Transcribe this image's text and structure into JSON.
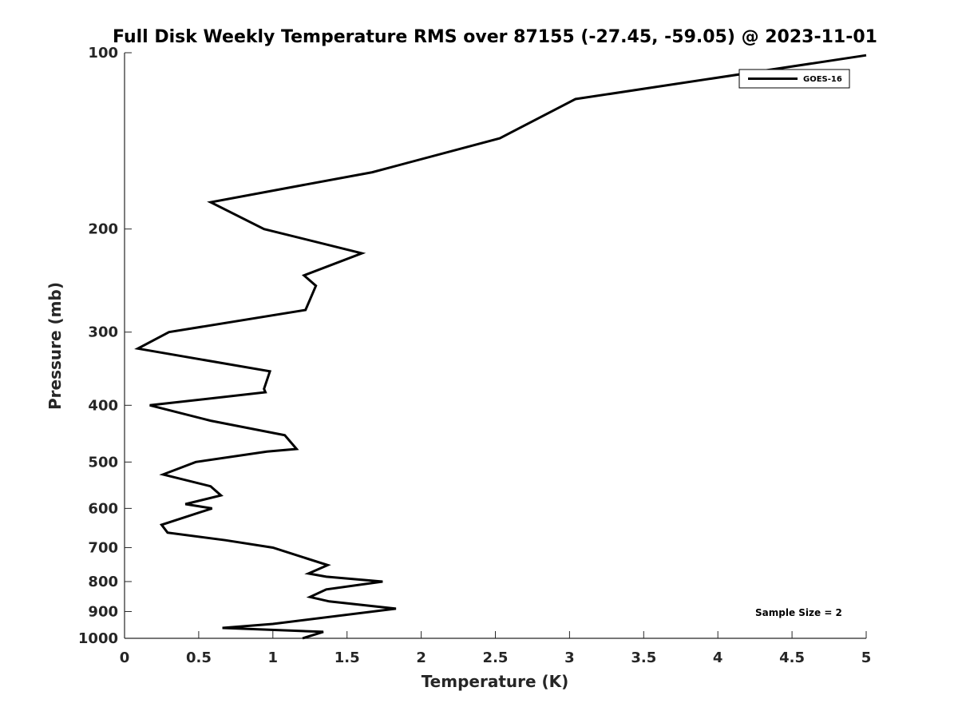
{
  "chart_data": {
    "type": "line",
    "title": "Full Disk Weekly Temperature RMS over 87155 (-27.45, -59.05) @ 2023-11-01",
    "xlabel": "Temperature (K)",
    "ylabel": "Pressure (mb)",
    "xlim": [
      0,
      5
    ],
    "ylim": [
      100,
      1000
    ],
    "y_scale": "log",
    "y_reversed": true,
    "x_ticks": [
      0,
      0.5,
      1,
      1.5,
      2,
      2.5,
      3,
      3.5,
      4,
      4.5,
      5
    ],
    "x_tick_labels": [
      "0",
      "0.5",
      "1",
      "1.5",
      "2",
      "2.5",
      "3",
      "3.5",
      "4",
      "4.5",
      "5"
    ],
    "y_ticks": [
      100,
      200,
      300,
      400,
      500,
      600,
      700,
      800,
      900,
      1000
    ],
    "y_tick_labels": [
      "100",
      "200",
      "300",
      "400",
      "500",
      "600",
      "700",
      "800",
      "900",
      "1000"
    ],
    "grid": false,
    "legend_position": "top-right",
    "series": [
      {
        "name": "GOES-16",
        "color": "#000000",
        "points": [
          [
            5.0,
            101
          ],
          [
            3.04,
            120
          ],
          [
            2.53,
            140
          ],
          [
            1.67,
            160
          ],
          [
            0.58,
            180
          ],
          [
            0.94,
            200
          ],
          [
            1.6,
            220
          ],
          [
            1.21,
            240
          ],
          [
            1.29,
            250
          ],
          [
            1.22,
            275
          ],
          [
            0.3,
            300
          ],
          [
            0.09,
            320
          ],
          [
            0.98,
            350
          ],
          [
            0.94,
            375
          ],
          [
            0.95,
            380
          ],
          [
            0.17,
            400
          ],
          [
            0.58,
            425
          ],
          [
            1.08,
            450
          ],
          [
            1.16,
            475
          ],
          [
            0.96,
            480
          ],
          [
            0.48,
            500
          ],
          [
            0.26,
            525
          ],
          [
            0.58,
            550
          ],
          [
            0.65,
            570
          ],
          [
            0.41,
            590
          ],
          [
            0.59,
            600
          ],
          [
            0.25,
            640
          ],
          [
            0.29,
            660
          ],
          [
            0.68,
            680
          ],
          [
            1.0,
            700
          ],
          [
            1.37,
            750
          ],
          [
            1.24,
            775
          ],
          [
            1.36,
            785
          ],
          [
            1.74,
            800
          ],
          [
            1.36,
            825
          ],
          [
            1.25,
            850
          ],
          [
            1.38,
            865
          ],
          [
            1.83,
            890
          ],
          [
            1.0,
            945
          ],
          [
            0.66,
            960
          ],
          [
            1.34,
            975
          ],
          [
            1.2,
            1000
          ]
        ]
      }
    ],
    "annotations": [
      {
        "text": "Sample Size = 2",
        "position": "bottom-right"
      }
    ]
  }
}
